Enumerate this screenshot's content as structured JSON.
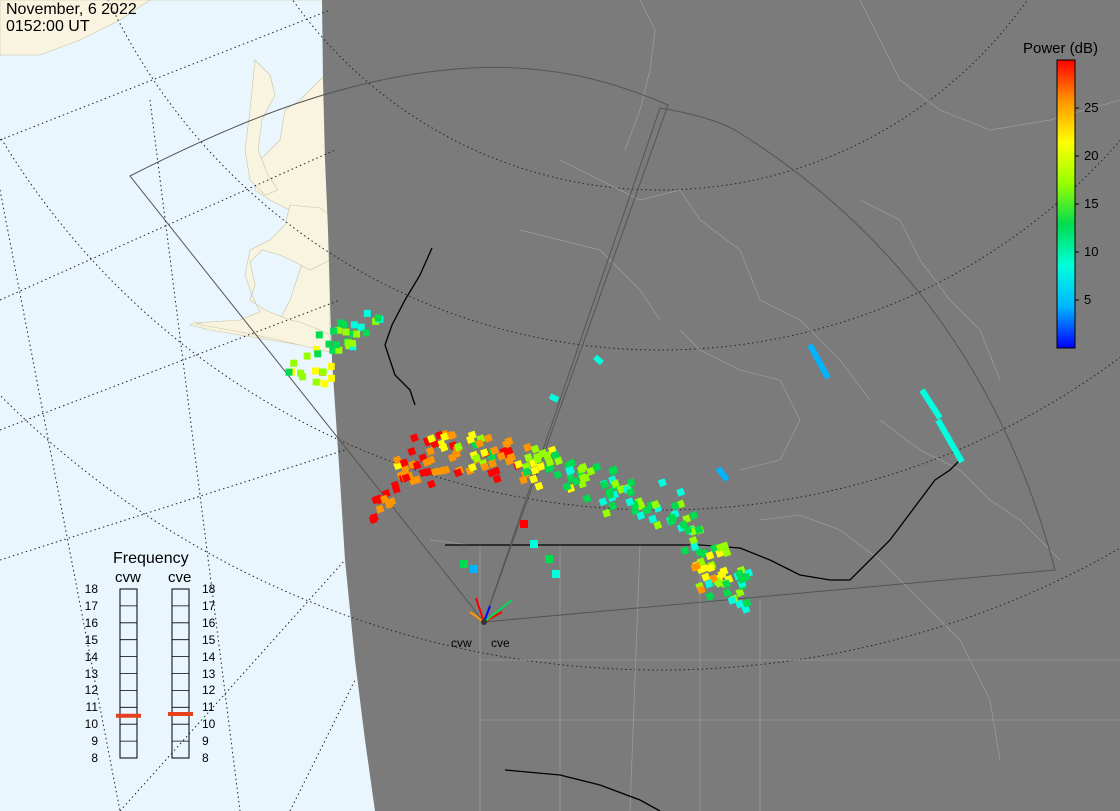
{
  "header": {
    "date": "November, 6 2022",
    "time": "0152:00 UT"
  },
  "colorbar": {
    "title": "Power (dB)",
    "ticks": [
      {
        "value": 25,
        "label": "25"
      },
      {
        "value": 20,
        "label": "20"
      },
      {
        "value": 15,
        "label": "15"
      },
      {
        "value": 10,
        "label": "10"
      },
      {
        "value": 5,
        "label": "5"
      }
    ],
    "min": 0,
    "max": 30,
    "colors": [
      "#0000ff",
      "#00b4ff",
      "#00ffdc",
      "#00dc50",
      "#96ff00",
      "#ffff00",
      "#ff9600",
      "#ff0000"
    ]
  },
  "frequency_panel": {
    "title": "Frequency",
    "unit_scale": [
      18,
      17,
      16,
      15,
      14,
      13,
      12,
      11,
      10,
      9,
      8
    ],
    "radars": [
      {
        "name": "cvw",
        "frequency_mhz": 10.5
      },
      {
        "name": "cve",
        "frequency_mhz": 10.6
      }
    ],
    "marker_color": "#e8401c"
  },
  "map": {
    "ocean_color": "#e9f6fd",
    "land_day_color": "#f8f4e0",
    "night_color": "#7b7b7b",
    "border_color": "#000000",
    "radar_sites": [
      {
        "name": "cvw"
      },
      {
        "name": "cve"
      }
    ]
  }
}
